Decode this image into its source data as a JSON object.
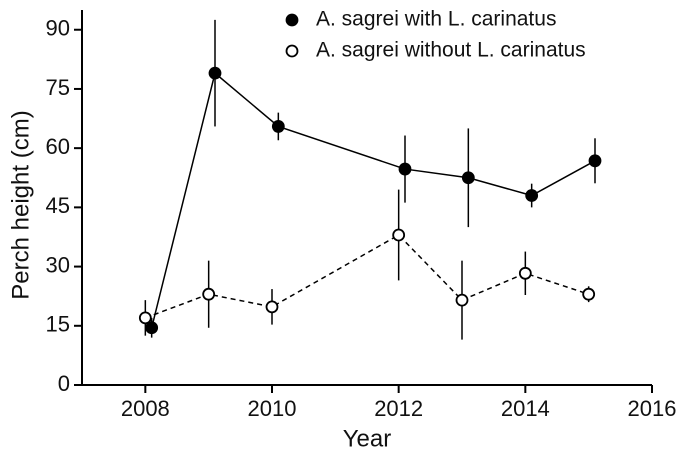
{
  "chart_data": {
    "type": "line",
    "x_label": "Year",
    "y_label": "Perch height (cm)",
    "xlim": [
      2007,
      2016
    ],
    "xticks": [
      2008,
      2010,
      2012,
      2014,
      2016
    ],
    "ylim": [
      0,
      95
    ],
    "yticks": [
      0,
      15,
      30,
      45,
      60,
      75,
      90
    ],
    "legend": "top-right",
    "series": [
      {
        "name": "A. sagrei with L. carinatus",
        "color": "#000000",
        "marker": "filled",
        "dash": false,
        "x": [
          2008.1,
          2009.1,
          2010.1,
          2012.1,
          2013.1,
          2014.1,
          2015.1
        ],
        "values": [
          14.5,
          79,
          65.5,
          54.7,
          52.5,
          48,
          56.8
        ],
        "errors": [
          2.5,
          13.5,
          3.5,
          8.5,
          12.5,
          3,
          5.7
        ]
      },
      {
        "name": "A. sagrei without L. carinatus",
        "color": "#000000",
        "marker": "open",
        "dash": true,
        "x": [
          2008,
          2009,
          2010,
          2012,
          2013,
          2014,
          2015
        ],
        "values": [
          17,
          23,
          19.8,
          38,
          21.5,
          28.3,
          23
        ],
        "errors": [
          4.5,
          8.5,
          4.5,
          11.5,
          10,
          5.5,
          2
        ]
      }
    ]
  }
}
